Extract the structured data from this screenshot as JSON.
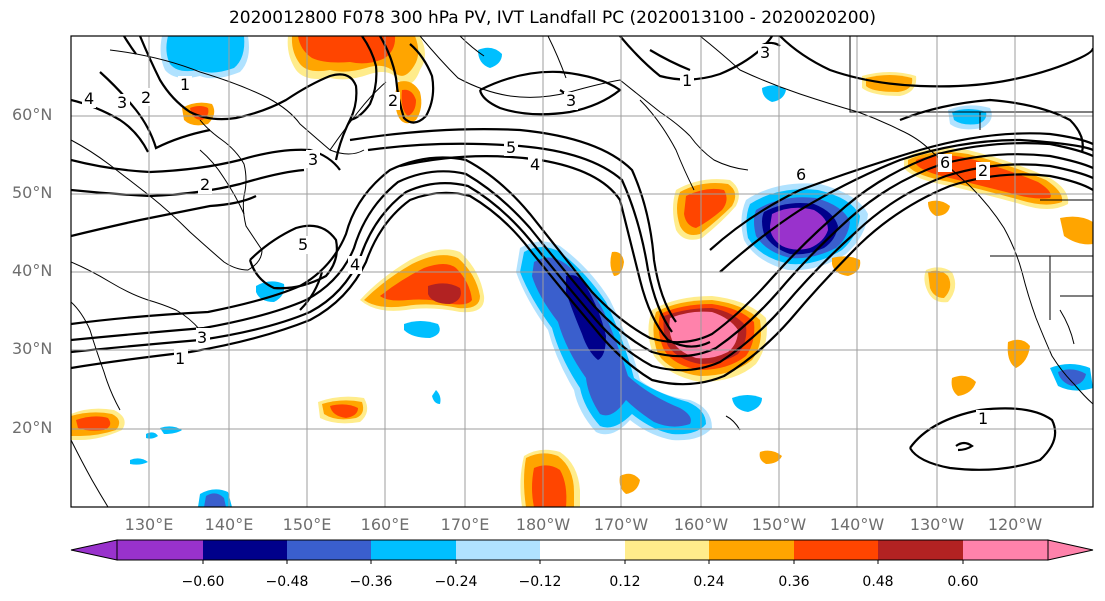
{
  "title": "2020012800 F078 300 hPa PV, IVT Landfall PC (2020013100 - 2020020200)",
  "latitude_labels": [
    "60°N",
    "50°N",
    "40°N",
    "30°N",
    "20°N"
  ],
  "longitude_labels": [
    "130°E",
    "140°E",
    "150°E",
    "160°E",
    "170°E",
    "180°W",
    "170°W",
    "160°W",
    "150°W",
    "140°W",
    "130°W",
    "120°W"
  ],
  "colorbar": {
    "ticks": [
      "−0.60",
      "−0.48",
      "−0.36",
      "−0.24",
      "−0.12",
      "0.12",
      "0.24",
      "0.36",
      "0.48",
      "0.60"
    ],
    "colors": [
      "#9932cc",
      "#00008b",
      "#3a5fcd",
      "#00bfff",
      "#b0e2ff",
      "#ffffff",
      "#ffec8b",
      "#ffa500",
      "#ff4500",
      "#b22222",
      "#ff82ab"
    ]
  },
  "contour_labels": [
    "1",
    "2",
    "3",
    "4",
    "5",
    "6",
    "3",
    "2",
    "1",
    "4",
    "3",
    "2",
    "5",
    "3",
    "4",
    "1",
    "1",
    "6",
    "2",
    "3"
  ],
  "colors": {
    "frame": "#000000",
    "grid": "#9e9e9e",
    "contour": "#000000",
    "coast": "#000000"
  }
}
